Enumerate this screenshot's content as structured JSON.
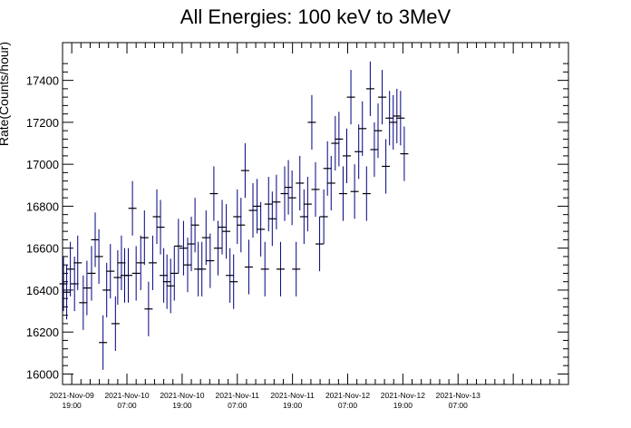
{
  "chart_data": {
    "type": "scatter",
    "title": "All Energies:  100 keV to 3MeV",
    "ylabel": "Rate(Counts/hour)",
    "xlabel": "",
    "ylim": [
      15950,
      17580
    ],
    "xlim_hours": [
      -2,
      108
    ],
    "yticks": [
      16000,
      16200,
      16400,
      16600,
      16800,
      17000,
      17200,
      17400
    ],
    "xticks": [
      {
        "hour": 0,
        "date": "2021-Nov-09",
        "time": "19:00"
      },
      {
        "hour": 12,
        "date": "2021-Nov-10",
        "time": "07:00"
      },
      {
        "hour": 24,
        "date": "2021-Nov-10",
        "time": "19:00"
      },
      {
        "hour": 36,
        "date": "2021-Nov-11",
        "time": "07:00"
      },
      {
        "hour": 48,
        "date": "2021-Nov-11",
        "time": "19:00"
      },
      {
        "hour": 60,
        "date": "2021-Nov-12",
        "time": "07:00"
      },
      {
        "hour": 72,
        "date": "2021-Nov-12",
        "time": "19:00"
      },
      {
        "hour": 84,
        "date": "2021-Nov-13",
        "time": "07:00"
      }
    ],
    "grid": false,
    "error_bar_halfwidth": 130,
    "marker_color": "#000080",
    "points": [
      [
        -1.8,
        16430
      ],
      [
        -1.1,
        16390
      ],
      [
        -0.3,
        16500
      ],
      [
        0.6,
        16430
      ],
      [
        1.3,
        16530
      ],
      [
        2.5,
        16340
      ],
      [
        3.3,
        16410
      ],
      [
        4.3,
        16480
      ],
      [
        5.1,
        16640
      ],
      [
        5.9,
        16560
      ],
      [
        6.8,
        16150
      ],
      [
        7.6,
        16400
      ],
      [
        8.4,
        16490
      ],
      [
        9.5,
        16240
      ],
      [
        10.0,
        16460
      ],
      [
        10.8,
        16530
      ],
      [
        11.5,
        16470
      ],
      [
        12.3,
        16470
      ],
      [
        13.2,
        16790
      ],
      [
        14.0,
        16480
      ],
      [
        15.0,
        16530
      ],
      [
        15.8,
        16650
      ],
      [
        16.7,
        16310
      ],
      [
        17.6,
        16530
      ],
      [
        18.5,
        16750
      ],
      [
        19.3,
        16700
      ],
      [
        20.0,
        16470
      ],
      [
        20.7,
        16440
      ],
      [
        21.5,
        16420
      ],
      [
        22.3,
        16480
      ],
      [
        23.2,
        16610
      ],
      [
        24.3,
        16600
      ],
      [
        25.2,
        16520
      ],
      [
        26.0,
        16620
      ],
      [
        26.8,
        16710
      ],
      [
        27.5,
        16500
      ],
      [
        28.3,
        16500
      ],
      [
        29.2,
        16650
      ],
      [
        30.1,
        16540
      ],
      [
        30.9,
        16860
      ],
      [
        31.8,
        16600
      ],
      [
        32.7,
        16700
      ],
      [
        33.6,
        16680
      ],
      [
        34.4,
        16470
      ],
      [
        35.2,
        16440
      ],
      [
        36.0,
        16750
      ],
      [
        36.8,
        16710
      ],
      [
        37.7,
        16970
      ],
      [
        38.5,
        16510
      ],
      [
        39.4,
        16780
      ],
      [
        40.3,
        16800
      ],
      [
        41.1,
        16690
      ],
      [
        42.0,
        16500
      ],
      [
        42.8,
        16810
      ],
      [
        43.6,
        16740
      ],
      [
        44.5,
        16820
      ],
      [
        45.4,
        16500
      ],
      [
        46.3,
        16860
      ],
      [
        47.1,
        16890
      ],
      [
        47.9,
        16840
      ],
      [
        48.8,
        16500
      ],
      [
        49.6,
        16910
      ],
      [
        50.5,
        16750
      ],
      [
        51.3,
        16810
      ],
      [
        52.2,
        17200
      ],
      [
        53.0,
        16880
      ],
      [
        53.9,
        16620
      ],
      [
        54.8,
        16750
      ],
      [
        55.6,
        16980
      ],
      [
        56.4,
        16910
      ],
      [
        57.3,
        17100
      ],
      [
        58.1,
        17120
      ],
      [
        59.0,
        16860
      ],
      [
        59.8,
        17040
      ],
      [
        60.7,
        17320
      ],
      [
        61.5,
        16870
      ],
      [
        62.4,
        17060
      ],
      [
        63.2,
        17170
      ],
      [
        64.1,
        16860
      ],
      [
        64.9,
        17360
      ],
      [
        65.8,
        17070
      ],
      [
        66.6,
        17160
      ],
      [
        67.5,
        17320
      ],
      [
        68.3,
        16990
      ],
      [
        69.1,
        17220
      ],
      [
        69.9,
        17200
      ],
      [
        70.7,
        17230
      ],
      [
        71.5,
        17220
      ],
      [
        72.3,
        17050
      ]
    ]
  }
}
